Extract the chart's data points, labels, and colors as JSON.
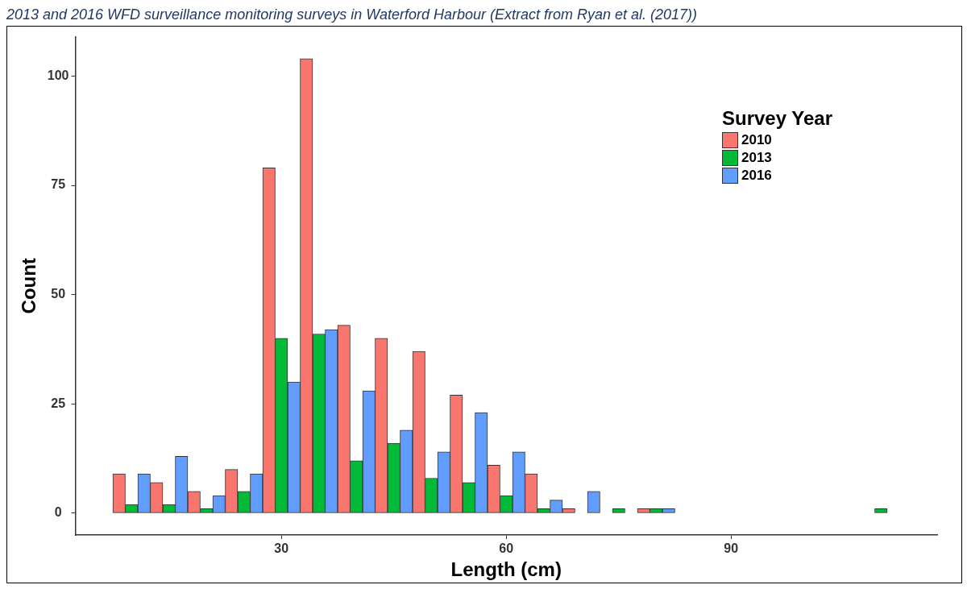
{
  "chart_data": {
    "type": "bar",
    "title": "2013 and 2016 WFD surveillance monitoring surveys in Waterford Harbour (Extract from Ryan et al. (2017))",
    "xlabel": "Length (cm)",
    "ylabel": "Count",
    "legend_title": "Survey Year",
    "x": [
      10,
      15,
      20,
      25,
      30,
      35,
      40,
      45,
      50,
      55,
      60,
      65,
      70,
      75,
      80,
      85,
      90,
      95,
      100,
      105,
      110
    ],
    "series": [
      {
        "name": "2010",
        "color": "#f8766d",
        "values": [
          9,
          7,
          5,
          10,
          79,
          104,
          43,
          40,
          37,
          27,
          11,
          9,
          1,
          0,
          1,
          0,
          0,
          0,
          0,
          0,
          0
        ]
      },
      {
        "name": "2013",
        "color": "#00ba38",
        "values": [
          2,
          2,
          1,
          5,
          40,
          41,
          12,
          16,
          8,
          7,
          4,
          1,
          0,
          1,
          1,
          0,
          0,
          0,
          0,
          0,
          1
        ]
      },
      {
        "name": "2016",
        "color": "#619cff",
        "values": [
          9,
          13,
          4,
          9,
          30,
          42,
          28,
          19,
          14,
          23,
          14,
          3,
          5,
          0,
          1,
          0,
          0,
          0,
          0,
          0,
          0
        ]
      }
    ],
    "xlim": [
      2.5,
      117.5
    ],
    "xticks": [
      30,
      60,
      90
    ],
    "ylim": [
      -5,
      109
    ],
    "yticks": [
      0,
      25,
      50,
      75,
      100
    ],
    "grid": false,
    "legend": "top right"
  }
}
